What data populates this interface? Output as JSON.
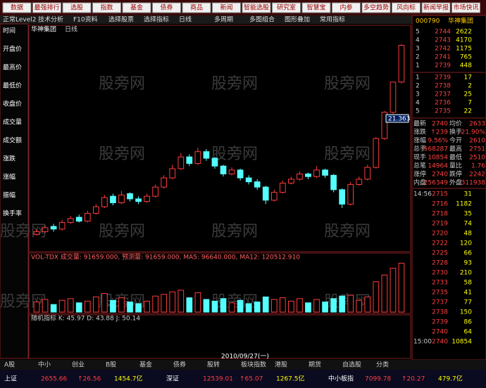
{
  "menu": [
    "数据",
    "最强排行",
    "选股",
    "指数",
    "基金",
    "债券",
    "商品",
    "新闻",
    "智能选股",
    "研究室",
    "智慧宝",
    "内参",
    "多空趋势",
    "风向标",
    "新闻早报",
    "市场快讯"
  ],
  "toolbar": [
    "正常Level2",
    "技术分析",
    "F10资料",
    "选择股票",
    "选择指标",
    "日线",
    "多周期",
    "多图组合",
    "图形叠加",
    "常用指标"
  ],
  "side_labels": [
    "时间",
    "开盘价",
    "最高价",
    "最低价",
    "收盘价",
    "成交量",
    "成交额",
    "涨跌",
    "涨幅",
    "振幅",
    "换手率"
  ],
  "watermark": "股旁网",
  "stock": {
    "code": "000790",
    "name": "华神集团",
    "period": "日线"
  },
  "kline": {
    "ylim": [
      12,
      28.5
    ],
    "ma_label": "21.363",
    "ohlc": [
      [
        13.0,
        13.4,
        12.9,
        13.2
      ],
      [
        13.2,
        13.7,
        13.1,
        13.5
      ],
      [
        13.6,
        13.8,
        13.2,
        13.4
      ],
      [
        13.4,
        14.1,
        13.3,
        13.9
      ],
      [
        13.9,
        14.4,
        13.8,
        14.2
      ],
      [
        14.3,
        14.5,
        13.9,
        14.0
      ],
      [
        14.0,
        14.8,
        13.9,
        14.6
      ],
      [
        14.6,
        15.3,
        14.5,
        15.1
      ],
      [
        15.1,
        16.0,
        15.0,
        15.8
      ],
      [
        15.9,
        16.1,
        15.2,
        15.4
      ],
      [
        15.4,
        16.3,
        15.3,
        16.0
      ],
      [
        16.1,
        16.2,
        15.5,
        15.7
      ],
      [
        15.7,
        15.9,
        15.3,
        15.5
      ],
      [
        15.5,
        16.1,
        15.4,
        15.9
      ],
      [
        15.9,
        16.8,
        15.8,
        16.6
      ],
      [
        16.6,
        17.5,
        16.5,
        17.3
      ],
      [
        17.3,
        18.3,
        17.2,
        18.0
      ],
      [
        18.0,
        19.2,
        17.9,
        18.9
      ],
      [
        18.9,
        19.1,
        18.2,
        18.4
      ],
      [
        18.4,
        19.6,
        18.3,
        19.3
      ],
      [
        19.3,
        19.5,
        18.6,
        18.8
      ],
      [
        18.8,
        18.9,
        18.0,
        18.2
      ],
      [
        18.2,
        18.3,
        17.4,
        17.6
      ],
      [
        17.6,
        18.1,
        17.5,
        17.9
      ],
      [
        17.9,
        18.0,
        17.1,
        17.3
      ],
      [
        17.3,
        17.5,
        16.8,
        17.0
      ],
      [
        17.0,
        17.2,
        16.4,
        16.6
      ],
      [
        16.6,
        16.7,
        15.3,
        15.6
      ],
      [
        15.6,
        16.4,
        15.5,
        16.2
      ],
      [
        16.2,
        17.1,
        16.1,
        16.9
      ],
      [
        16.9,
        17.4,
        16.8,
        17.2
      ],
      [
        17.2,
        17.8,
        17.1,
        17.6
      ],
      [
        17.6,
        17.7,
        17.2,
        17.4
      ],
      [
        17.4,
        18.2,
        17.3,
        17.9
      ],
      [
        17.9,
        18.0,
        17.3,
        17.5
      ],
      [
        17.5,
        17.6,
        16.2,
        16.4
      ],
      [
        16.4,
        16.5,
        15.0,
        15.3
      ],
      [
        15.3,
        17.0,
        15.2,
        16.8
      ],
      [
        16.8,
        17.4,
        16.7,
        17.2
      ],
      [
        17.2,
        18.3,
        17.1,
        18.1
      ],
      [
        18.1,
        20.4,
        18.0,
        20.3
      ],
      [
        20.3,
        22.4,
        20.2,
        22.3
      ],
      [
        22.3,
        24.6,
        22.2,
        24.6
      ],
      [
        24.6,
        27.5,
        24.5,
        27.4
      ]
    ]
  },
  "volume": {
    "header": "VOL-TDX 成交量: 91659.000, 预测量: 91659.000, MA5: 96640.000, MA12: 120512.910",
    "ylim": [
      0,
      60000
    ],
    "values": [
      12000,
      15000,
      9000,
      14000,
      16000,
      11000,
      13000,
      18000,
      22000,
      14000,
      17000,
      12000,
      10000,
      13000,
      19000,
      21000,
      24000,
      26000,
      17000,
      23000,
      15000,
      13000,
      16000,
      11000,
      14000,
      10000,
      12000,
      18000,
      15000,
      17000,
      13000,
      16000,
      11000,
      15000,
      12000,
      16000,
      19000,
      20000,
      14000,
      18000,
      36000,
      44000,
      52000,
      58000
    ]
  },
  "indicator": {
    "header": "随机指标 K: 45.97 D: 43.88 J: 50.14"
  },
  "date_label": "2010/09/27(一)",
  "quote": {
    "asks": [
      [
        "5",
        "2744",
        "2622"
      ],
      [
        "4",
        "2743",
        "4170"
      ],
      [
        "3",
        "2742",
        "1175"
      ],
      [
        "2",
        "2741",
        "765"
      ],
      [
        "1",
        "2739",
        "448"
      ]
    ],
    "bids": [
      [
        "1",
        "2739",
        "17"
      ],
      [
        "2",
        "2738",
        "2"
      ],
      [
        "3",
        "2737",
        "25"
      ],
      [
        "4",
        "2736",
        "7"
      ],
      [
        "5",
        "2735",
        "22"
      ]
    ],
    "stats": [
      [
        "最新",
        "2740",
        "均价",
        "2633"
      ],
      [
        "涨跌",
        "↑239",
        "换手",
        "21.90%"
      ],
      [
        "涨幅",
        "9.56%",
        "今开",
        "2610"
      ],
      [
        "总手",
        "568287",
        "最高",
        "2751"
      ],
      [
        "现手",
        "10854",
        "最低",
        "2510"
      ],
      [
        "总笔",
        "14964",
        "量比",
        "1.76"
      ],
      [
        "涨停",
        "2740",
        "跌停",
        "2242"
      ],
      [
        "内盘",
        "256349",
        "外盘",
        "311938"
      ]
    ],
    "ticks": [
      [
        "14:56",
        "2715",
        "31"
      ],
      [
        "",
        "2716",
        "1182"
      ],
      [
        "",
        "2718",
        "35"
      ],
      [
        "",
        "2719",
        "74"
      ],
      [
        "",
        "2720",
        "48"
      ],
      [
        "",
        "2722",
        "120"
      ],
      [
        "",
        "2725",
        "66"
      ],
      [
        "",
        "2728",
        "93"
      ],
      [
        "",
        "2730",
        "210"
      ],
      [
        "",
        "2733",
        "58"
      ],
      [
        "",
        "2735",
        "41"
      ],
      [
        "",
        "2737",
        "77"
      ],
      [
        "",
        "2738",
        "150"
      ],
      [
        "",
        "2739",
        "86"
      ],
      [
        "",
        "2740",
        "64"
      ],
      [
        "15:00",
        "2740",
        "10854"
      ]
    ]
  },
  "status": [
    [
      "上证",
      "2655.66",
      "↑26.56",
      "1454.7亿"
    ],
    [
      "深证",
      "12539.01",
      "↑65.07",
      "1267.5亿"
    ],
    [
      "中小板指",
      "7099.78",
      "↑20.27",
      "479.7亿"
    ]
  ],
  "tabs": [
    "A股",
    "中小",
    "创业",
    "B股",
    "基金",
    "债券",
    "股转",
    "板块指数",
    "港股",
    "期货",
    "自选股",
    "分类"
  ]
}
